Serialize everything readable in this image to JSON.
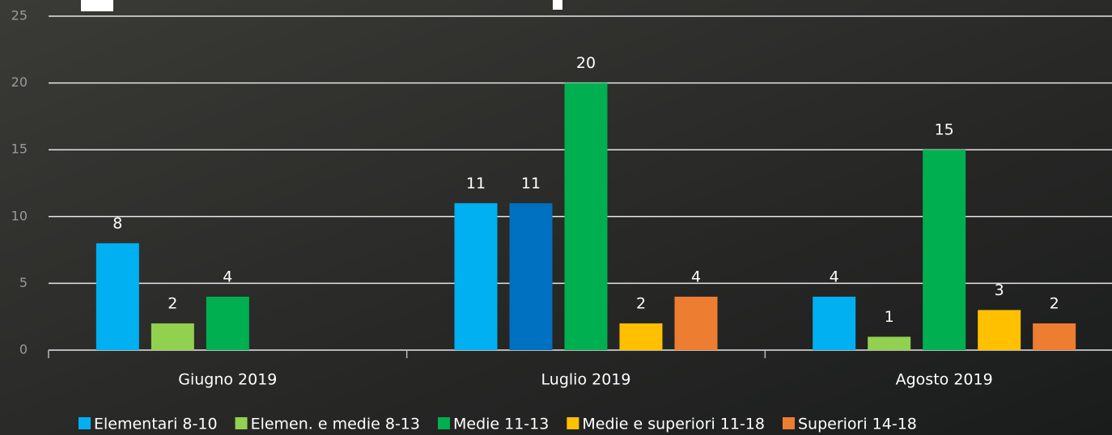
{
  "chart_data": {
    "type": "bar",
    "categories": [
      "Giugno 2019",
      "Luglio 2019",
      "Agosto 2019"
    ],
    "series": [
      {
        "name": "Elementari 8-10",
        "color": "#00b0f0",
        "values": [
          8,
          11,
          4
        ]
      },
      {
        "name": "Elemen. e medie 8-13",
        "color": "#92d050",
        "colors": [
          "#92d050",
          "#0070c0",
          "#92d050"
        ],
        "values": [
          2,
          11,
          1
        ]
      },
      {
        "name": "Medie 11-13",
        "color": "#00b050",
        "values": [
          4,
          20,
          15
        ]
      },
      {
        "name": "Medie e superiori 11-18",
        "color": "#ffc000",
        "values": [
          null,
          2,
          3
        ]
      },
      {
        "name": "Superiori 14-18",
        "color": "#ed7d31",
        "values": [
          null,
          4,
          2
        ]
      }
    ],
    "ylim": [
      0,
      25
    ],
    "yticks": [
      0,
      5,
      10,
      15,
      20,
      25
    ],
    "grid": true,
    "legend": "bottom"
  }
}
